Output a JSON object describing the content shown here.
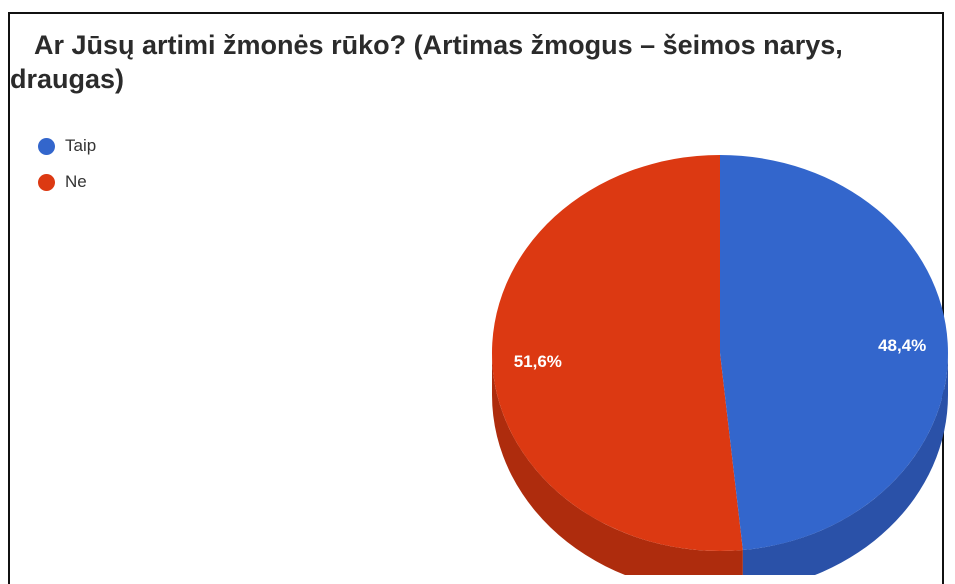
{
  "chart_data": {
    "type": "pie",
    "title": "Ar Jūsų artimi žmonės rūko? (Artimas žmogus – šeimos narys, draugas)",
    "legend_position": "top-left",
    "slices": [
      {
        "label": "Taip",
        "value": 48.4,
        "display": "48,4%",
        "color": "#3366cc",
        "side_color": "#2a51a8"
      },
      {
        "label": "Ne",
        "value": 51.6,
        "display": "51,6%",
        "color": "#dc3912",
        "side_color": "#ae2c0d"
      }
    ]
  }
}
